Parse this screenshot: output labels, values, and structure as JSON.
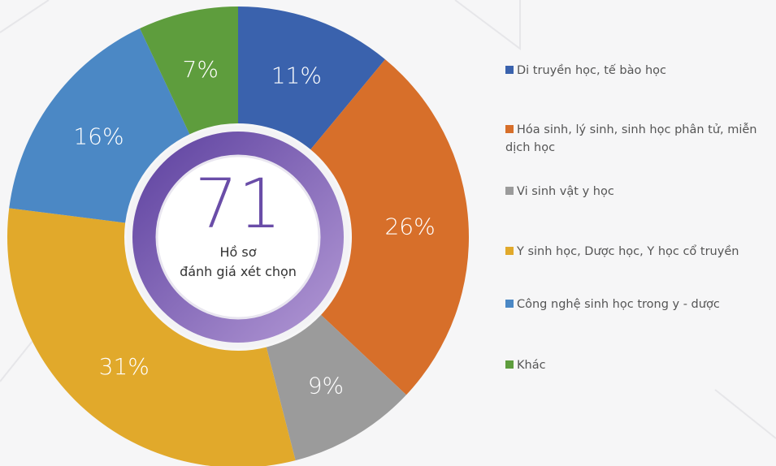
{
  "chart_data": {
    "type": "donut",
    "categories": [
      "Di truyền học, tế bào học",
      "Hóa sinh, lý sinh, sinh học phân tử, miễn dịch học",
      "Vi sinh vật y học",
      "Y sinh học, Dược học, Y học cổ truyền",
      "Công nghệ sinh học trong y - dược",
      "Khác"
    ],
    "values": [
      11,
      26,
      9,
      31,
      16,
      7
    ],
    "value_labels": [
      "11%",
      "26%",
      "9%",
      "31%",
      "16%",
      "7%"
    ],
    "colors": [
      "#3a62ad",
      "#d76f2a",
      "#9b9b9b",
      "#e1a92b",
      "#4b88c5",
      "#5e9d3d"
    ],
    "center_value": 71,
    "center_text": [
      "Hồ sơ",
      "đánh giá xét chọn"
    ]
  }
}
